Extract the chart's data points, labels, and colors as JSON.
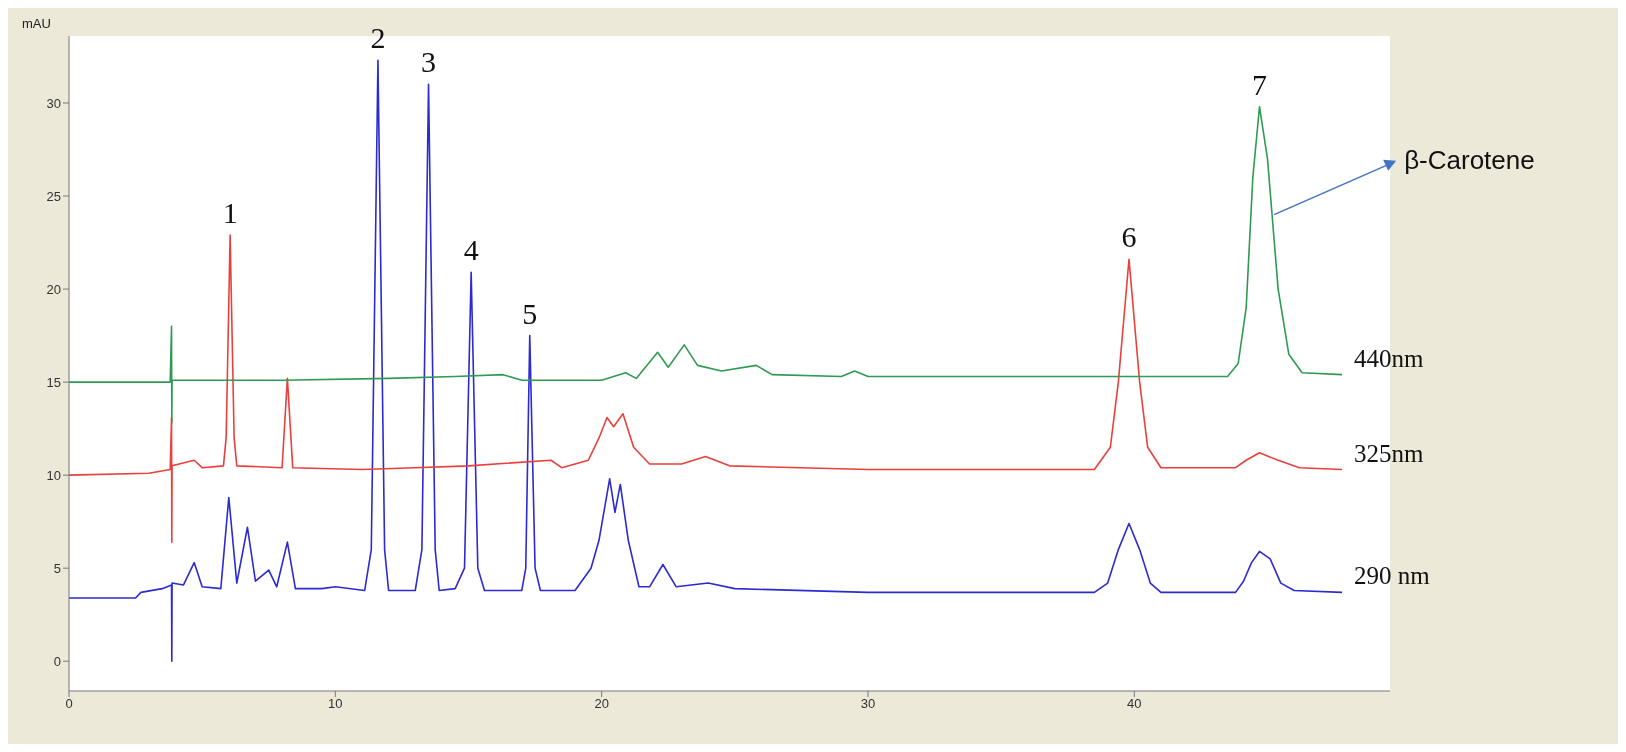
{
  "chart_data": {
    "type": "line",
    "ylabel": "mAU",
    "xlim": [
      0,
      49.6
    ],
    "xticks": [
      0,
      10,
      20,
      30,
      40
    ],
    "ylim": [
      -1.6,
      33.6
    ],
    "yticks": [
      0,
      5,
      10,
      15,
      20,
      25,
      30
    ],
    "series": [
      {
        "name": "440nm",
        "color": "#2f9a52",
        "x": [
          0,
          3.8,
          3.85,
          3.86,
          3.87,
          8,
          12,
          14.5,
          16.3,
          17,
          20,
          20.9,
          21.3,
          22.1,
          22.5,
          23.1,
          23.6,
          24.5,
          25.8,
          26.4,
          29,
          29.5,
          30,
          35,
          43.5,
          43.9,
          44.2,
          44.45,
          44.7,
          45,
          45.4,
          45.8,
          46.3,
          47.8
        ],
        "values": [
          15,
          15,
          18,
          12.8,
          15.1,
          15.1,
          15.2,
          15.3,
          15.4,
          15.1,
          15.1,
          15.5,
          15.2,
          16.6,
          15.8,
          17,
          15.9,
          15.6,
          15.9,
          15.4,
          15.3,
          15.6,
          15.3,
          15.3,
          15.3,
          16,
          19,
          26,
          29.8,
          27,
          20,
          16.5,
          15.5,
          15.4
        ]
      },
      {
        "name": "325nm",
        "color": "#e8413c",
        "x": [
          0,
          3,
          3.8,
          3.85,
          3.86,
          3.87,
          4.7,
          5,
          5.8,
          5.9,
          6.05,
          6.2,
          6.3,
          8,
          8.2,
          8.4,
          11,
          13,
          15,
          18.1,
          18.5,
          19.5,
          19.9,
          20.2,
          20.45,
          20.8,
          21.2,
          21.8,
          23,
          23.9,
          24.8,
          30,
          38.5,
          39.1,
          39.4,
          39.8,
          40.2,
          40.5,
          41,
          43.8,
          44.2,
          44.7,
          45.4,
          46.2,
          47.8
        ],
        "values": [
          10,
          10.1,
          10.3,
          13.1,
          6.4,
          10.5,
          10.8,
          10.4,
          10.5,
          12,
          22.9,
          12,
          10.5,
          10.4,
          15.2,
          10.4,
          10.3,
          10.4,
          10.5,
          10.8,
          10.4,
          10.8,
          12,
          13.1,
          12.6,
          13.3,
          11.5,
          10.6,
          10.6,
          11,
          10.5,
          10.3,
          10.3,
          11.5,
          15,
          21.6,
          15,
          11.5,
          10.4,
          10.4,
          10.8,
          11.2,
          10.8,
          10.4,
          10.3
        ]
      },
      {
        "name": "290 nm",
        "color": "#2b2bd0",
        "x": [
          0,
          2.5,
          2.7,
          3.5,
          3.85,
          3.86,
          3.87,
          4.3,
          4.7,
          5,
          5.7,
          6,
          6.3,
          6.7,
          7,
          7.5,
          7.8,
          8.2,
          8.5,
          9.5,
          10,
          11.1,
          11.35,
          11.6,
          11.85,
          12,
          13,
          13.25,
          13.5,
          13.75,
          13.9,
          14.5,
          14.85,
          15.1,
          15.35,
          15.6,
          17,
          17.15,
          17.3,
          17.5,
          17.7,
          19,
          19.6,
          19.9,
          20.3,
          20.5,
          20.7,
          21,
          21.4,
          21.8,
          22.3,
          22.8,
          24,
          25,
          30,
          35,
          38.5,
          39,
          39.4,
          39.8,
          40.2,
          40.6,
          41,
          43.8,
          44.1,
          44.4,
          44.7,
          45.1,
          45.5,
          46,
          47.8
        ],
        "values": [
          3.4,
          3.4,
          3.7,
          3.9,
          4.1,
          0,
          4.2,
          4.1,
          5.3,
          4,
          3.9,
          8.8,
          4.2,
          7.2,
          4.3,
          4.9,
          4,
          6.4,
          3.9,
          3.9,
          4,
          3.8,
          6,
          32.3,
          6,
          3.8,
          3.8,
          6,
          31,
          6,
          3.8,
          3.9,
          5,
          20.9,
          5,
          3.8,
          3.8,
          5,
          17.5,
          5,
          3.8,
          3.8,
          5,
          6.5,
          9.8,
          8,
          9.5,
          6.5,
          4,
          4,
          5.2,
          4,
          4.2,
          3.9,
          3.7,
          3.7,
          3.7,
          4.2,
          6,
          7.4,
          6,
          4.2,
          3.7,
          3.7,
          4.3,
          5.3,
          5.9,
          5.5,
          4.2,
          3.8,
          3.7
        ]
      }
    ],
    "annotations": [
      {
        "text": "1",
        "x": 6.05,
        "y": 22.9
      },
      {
        "text": "2",
        "x": 11.6,
        "y": 32.3
      },
      {
        "text": "3",
        "x": 13.5,
        "y": 31
      },
      {
        "text": "4",
        "x": 15.1,
        "y": 20.9
      },
      {
        "text": "5",
        "x": 17.3,
        "y": 17.5
      },
      {
        "text": "6",
        "x": 39.8,
        "y": 21.6
      },
      {
        "text": "7",
        "x": 44.7,
        "y": 29.8
      },
      {
        "text": "β-Carotene",
        "x": 45.1,
        "y": 24
      }
    ]
  }
}
